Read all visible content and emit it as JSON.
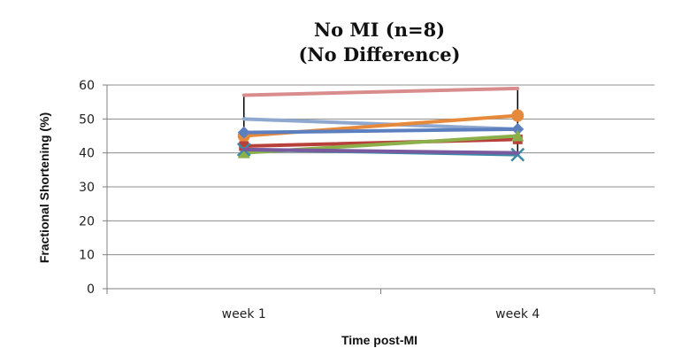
{
  "chart_data": {
    "type": "line",
    "title": "No MI (n=8)",
    "subtitle": "(No Difference)",
    "xlabel": "Time post-MI",
    "ylabel": "Fractional Shortening (%)",
    "categories": [
      "week 1",
      "week 4"
    ],
    "ylim": [
      0,
      60
    ],
    "yticks": [
      0,
      10,
      20,
      30,
      40,
      50,
      60
    ],
    "grid": true,
    "legend": "none",
    "series": [
      {
        "values": [
          57,
          59
        ],
        "color": "#d98c8c",
        "marker": "none"
      },
      {
        "values": [
          50,
          47
        ],
        "color": "#8fa8d0",
        "marker": "none"
      },
      {
        "values": [
          45,
          51
        ],
        "color": "#e7893b",
        "marker": "circle"
      },
      {
        "values": [
          46,
          47
        ],
        "color": "#5b7fbf",
        "marker": "diamond"
      },
      {
        "values": [
          42,
          44
        ],
        "color": "#b8403a",
        "marker": "square"
      },
      {
        "values": [
          40,
          45
        ],
        "color": "#8bb04a",
        "marker": "triangle"
      },
      {
        "values": [
          41,
          39.5
        ],
        "color": "#3c8aa8",
        "marker": "x"
      },
      {
        "values": [
          41,
          40
        ],
        "color": "#7a5a9e",
        "marker": "none"
      }
    ],
    "range_bars": [
      {
        "category": "week 1",
        "low": 40,
        "high": 57
      },
      {
        "category": "week 4",
        "low": 39.5,
        "high": 59
      }
    ],
    "colors": {
      "grid": "#8c8c8c",
      "axis": "#7f7f7f",
      "range_bar": "#000000"
    }
  }
}
